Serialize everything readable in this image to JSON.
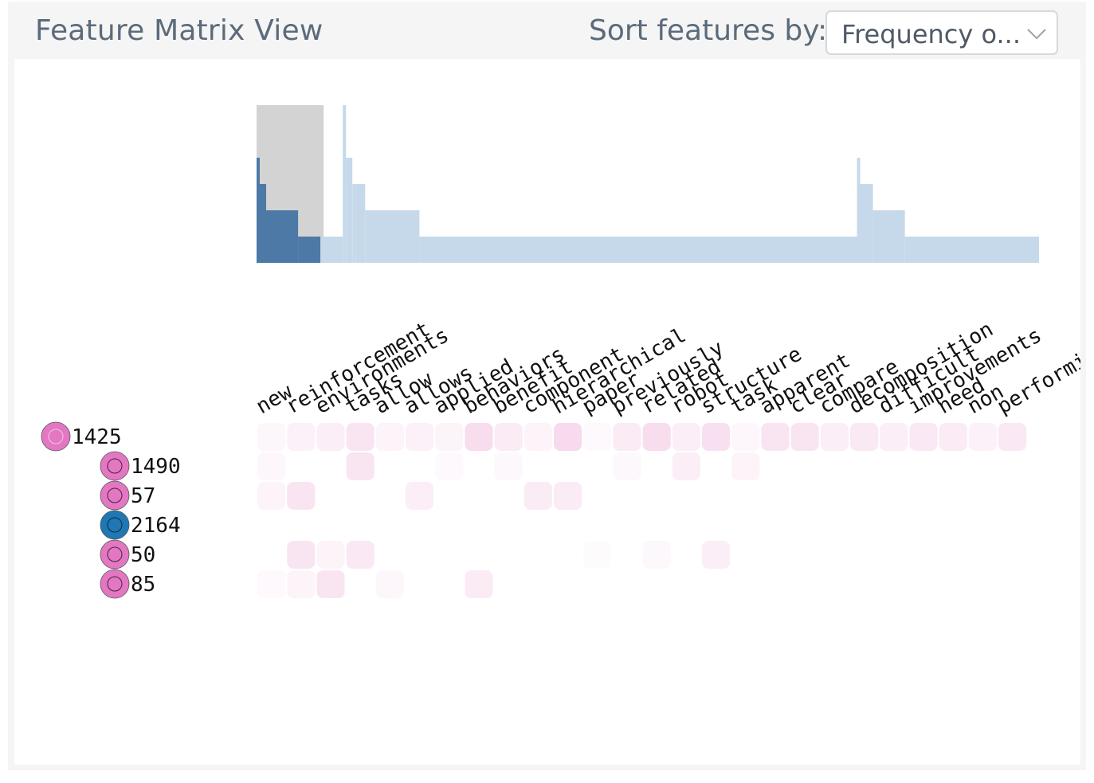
{
  "header": {
    "title": "Feature Matrix View",
    "sort_label": "Sort features by:",
    "sort_value": "Frequency o..."
  },
  "icons": {
    "dropdown": "chevron-down-icon",
    "row_marker": "circle-node-icon"
  },
  "colors": {
    "hist_selected": "#4c79a5",
    "hist_unselected": "#c6d9ea",
    "hist_brush": "#d3d3d3",
    "cell": "#f2c6e3",
    "node_pink": "#e377c2",
    "node_blue": "#1f77b4"
  },
  "features": [
    "new",
    "reinforcement",
    "environments",
    "tasks",
    "allow",
    "allows",
    "applied",
    "behaviors",
    "benefit",
    "component",
    "hierarchical",
    "paper",
    "previously",
    "related",
    "robot",
    "structure",
    "task",
    "apparent",
    "clear",
    "compare",
    "decomposition",
    "difficult",
    "improvements",
    "need",
    "non",
    "performing"
  ],
  "rows": [
    {
      "label": "1425",
      "level": 0,
      "color": "pink",
      "cells": [
        0.15,
        0.25,
        0.3,
        0.45,
        0.2,
        0.25,
        0.2,
        0.6,
        0.35,
        0.2,
        0.65,
        0.1,
        0.35,
        0.6,
        0.3,
        0.55,
        0.15,
        0.45,
        0.45,
        0.3,
        0.4,
        0.3,
        0.4,
        0.35,
        0.25,
        0.4
      ]
    },
    {
      "label": "1490",
      "level": 1,
      "color": "pink",
      "cells": [
        0.15,
        0,
        0,
        0.45,
        0,
        0,
        0.1,
        0,
        0.12,
        0,
        0,
        0,
        0.12,
        0,
        0.3,
        0,
        0.2,
        0,
        0,
        0,
        0,
        0,
        0,
        0,
        0,
        0
      ]
    },
    {
      "label": "57",
      "level": 1,
      "color": "pink",
      "cells": [
        0.2,
        0.45,
        0,
        0,
        0,
        0.3,
        0,
        0,
        0,
        0.35,
        0.35,
        0,
        0,
        0,
        0,
        0,
        0,
        0,
        0,
        0,
        0,
        0,
        0,
        0,
        0,
        0
      ]
    },
    {
      "label": "2164",
      "level": 1,
      "color": "blue",
      "cells": [
        0,
        0,
        0,
        0,
        0,
        0,
        0,
        0,
        0,
        0,
        0,
        0,
        0,
        0,
        0,
        0,
        0,
        0,
        0,
        0,
        0,
        0,
        0,
        0,
        0,
        0
      ]
    },
    {
      "label": "50",
      "level": 1,
      "color": "pink",
      "cells": [
        0,
        0.45,
        0.2,
        0.4,
        0,
        0,
        0,
        0,
        0,
        0,
        0,
        0.08,
        0,
        0.12,
        0,
        0.3,
        0,
        0,
        0,
        0,
        0,
        0,
        0,
        0,
        0,
        0
      ]
    },
    {
      "label": "85",
      "level": 1,
      "color": "pink",
      "cells": [
        0.1,
        0.2,
        0.45,
        0,
        0.15,
        0,
        0,
        0.35,
        0,
        0,
        0,
        0,
        0,
        0,
        0,
        0,
        0,
        0,
        0,
        0,
        0,
        0,
        0,
        0,
        0,
        0
      ]
    }
  ],
  "histogram": {
    "brush": [
      0,
      21
    ],
    "selected_steps": [
      {
        "count": 1,
        "value": 4
      },
      {
        "count": 2,
        "value": 3
      },
      {
        "count": 10,
        "value": 2
      },
      {
        "count": 7,
        "value": 1
      }
    ],
    "unselected_steps": [
      {
        "count": 7,
        "value": 1
      },
      {
        "count": 1,
        "value": 6
      },
      {
        "count": 2,
        "value": 4
      },
      {
        "count": 1,
        "value": 3
      },
      {
        "count": 3,
        "value": 3
      },
      {
        "count": 17,
        "value": 2
      },
      {
        "count": 137,
        "value": 1
      },
      {
        "count": 1,
        "value": 4
      },
      {
        "count": 4,
        "value": 3
      },
      {
        "count": 10,
        "value": 2
      },
      {
        "count": 42,
        "value": 1
      }
    ]
  }
}
